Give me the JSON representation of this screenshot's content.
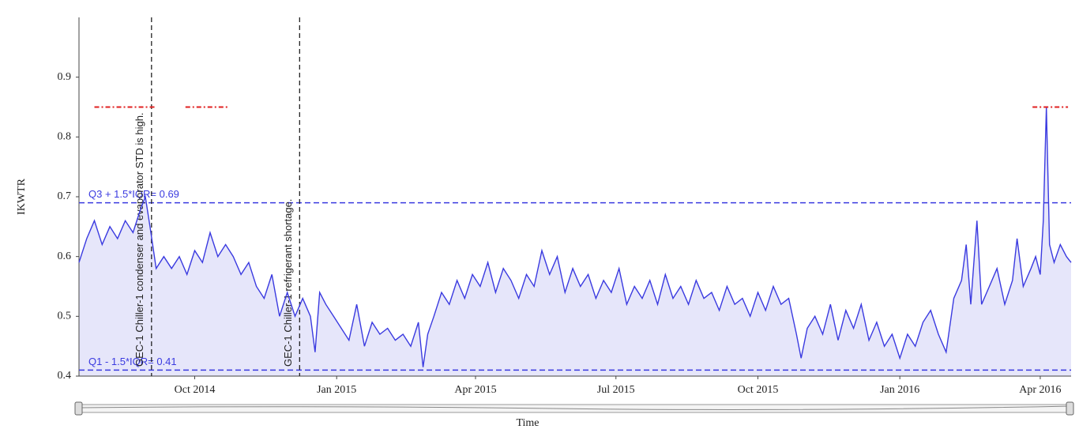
{
  "chart_data": {
    "type": "line",
    "ylabel": "IKWTR",
    "xlabel": "Time",
    "xlim": [
      0,
      643
    ],
    "xticks": [
      {
        "value": 75,
        "label": "Oct 2014"
      },
      {
        "value": 167,
        "label": "Jan 2015"
      },
      {
        "value": 257,
        "label": "Apr 2015"
      },
      {
        "value": 348,
        "label": "Jul 2015"
      },
      {
        "value": 440,
        "label": "Oct 2015"
      },
      {
        "value": 532,
        "label": "Jan 2016"
      },
      {
        "value": 623,
        "label": "Apr 2016"
      }
    ],
    "ylim": [
      0.4,
      1.0
    ],
    "yticks": [
      0.4,
      0.5,
      0.6,
      0.7,
      0.8,
      0.9
    ],
    "color": "#3a3ae0",
    "fill": "#e6e6fa",
    "x": [
      0,
      5,
      10,
      15,
      20,
      25,
      30,
      35,
      40,
      43,
      46,
      50,
      55,
      60,
      65,
      70,
      75,
      80,
      85,
      90,
      95,
      100,
      105,
      110,
      115,
      120,
      125,
      130,
      135,
      140,
      145,
      150,
      153,
      156,
      160,
      165,
      170,
      175,
      180,
      185,
      190,
      195,
      200,
      205,
      210,
      215,
      220,
      223,
      226,
      230,
      235,
      240,
      245,
      250,
      255,
      260,
      265,
      270,
      275,
      280,
      285,
      290,
      295,
      300,
      305,
      310,
      315,
      320,
      325,
      330,
      335,
      340,
      345,
      350,
      355,
      360,
      365,
      370,
      375,
      380,
      385,
      390,
      395,
      400,
      405,
      410,
      415,
      420,
      425,
      430,
      435,
      440,
      445,
      450,
      455,
      460,
      465,
      468,
      472,
      477,
      482,
      487,
      492,
      497,
      502,
      507,
      512,
      517,
      522,
      527,
      532,
      537,
      542,
      547,
      552,
      557,
      562,
      567,
      572,
      575,
      578,
      582,
      585,
      590,
      595,
      600,
      605,
      608,
      612,
      617,
      620,
      623,
      625,
      627,
      629,
      632,
      636,
      640,
      643
    ],
    "values": [
      0.59,
      0.63,
      0.66,
      0.62,
      0.65,
      0.63,
      0.66,
      0.64,
      0.68,
      0.7,
      0.65,
      0.58,
      0.6,
      0.58,
      0.6,
      0.57,
      0.61,
      0.59,
      0.64,
      0.6,
      0.62,
      0.6,
      0.57,
      0.59,
      0.55,
      0.53,
      0.57,
      0.5,
      0.54,
      0.5,
      0.53,
      0.5,
      0.44,
      0.54,
      0.52,
      0.5,
      0.48,
      0.46,
      0.52,
      0.45,
      0.49,
      0.47,
      0.48,
      0.46,
      0.47,
      0.45,
      0.49,
      0.415,
      0.47,
      0.5,
      0.54,
      0.52,
      0.56,
      0.53,
      0.57,
      0.55,
      0.59,
      0.54,
      0.58,
      0.56,
      0.53,
      0.57,
      0.55,
      0.61,
      0.57,
      0.6,
      0.54,
      0.58,
      0.55,
      0.57,
      0.53,
      0.56,
      0.54,
      0.58,
      0.52,
      0.55,
      0.53,
      0.56,
      0.52,
      0.57,
      0.53,
      0.55,
      0.52,
      0.56,
      0.53,
      0.54,
      0.51,
      0.55,
      0.52,
      0.53,
      0.5,
      0.54,
      0.51,
      0.55,
      0.52,
      0.53,
      0.47,
      0.43,
      0.48,
      0.5,
      0.47,
      0.52,
      0.46,
      0.51,
      0.48,
      0.52,
      0.46,
      0.49,
      0.45,
      0.47,
      0.43,
      0.47,
      0.45,
      0.49,
      0.51,
      0.47,
      0.44,
      0.53,
      0.56,
      0.62,
      0.52,
      0.66,
      0.52,
      0.55,
      0.58,
      0.52,
      0.56,
      0.63,
      0.55,
      0.58,
      0.6,
      0.57,
      0.66,
      0.85,
      0.62,
      0.59,
      0.62,
      0.6,
      0.59
    ],
    "thresholds": [
      {
        "value": 0.69,
        "label": "Q3 + 1.5*IQR= 0.69",
        "color": "#3a3ae0"
      },
      {
        "value": 0.41,
        "label": "Q1 - 1.5*IQR= 0.41",
        "color": "#3a3ae0"
      }
    ],
    "anomalies": {
      "color": "#e02020",
      "value": 0.85,
      "segments": [
        [
          10,
          49
        ],
        [
          69,
          97
        ],
        [
          618,
          641
        ]
      ]
    },
    "annotations": [
      {
        "x": 47,
        "text": "GEC-1 Chiller-1 condenser and evaporator STD is high."
      },
      {
        "x": 143,
        "text": "GEC-1 Chiller-1 refrigerant shortage."
      }
    ]
  }
}
